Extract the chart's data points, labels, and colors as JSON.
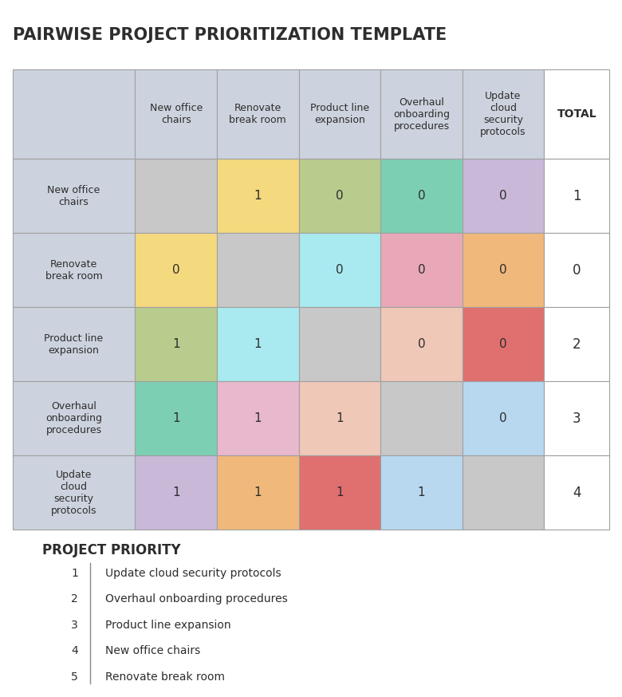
{
  "title": "PAIRWISE PROJECT PRIORITIZATION TEMPLATE",
  "projects": [
    "New office\nchairs",
    "Renovate\nbreak room",
    "Product line\nexpansion",
    "Overhaul\nonboarding\nprocedures",
    "Update\ncloud\nsecurity\nprotocols"
  ],
  "totals": [
    1,
    0,
    2,
    3,
    4
  ],
  "values": [
    [
      null,
      1,
      0,
      0,
      0
    ],
    [
      0,
      null,
      0,
      0,
      0
    ],
    [
      1,
      1,
      null,
      0,
      0
    ],
    [
      1,
      1,
      1,
      null,
      0
    ],
    [
      1,
      1,
      1,
      1,
      null
    ]
  ],
  "header_bg": "#cdd3de",
  "row_header_bg": "#cdd3de",
  "diagonal_bg": "#c8c8c8",
  "total_col_bg": "#ffffff",
  "cell_colors": [
    [
      null,
      "#f5d97e",
      "#b8cc8e",
      "#7dcfb3",
      "#c9b8d8"
    ],
    [
      "#f5d97e",
      null,
      "#a8eaf0",
      "#e8a8b8",
      "#f0b87a"
    ],
    [
      "#b8cc8e",
      "#a8eaf0",
      null,
      "#f0c8b8",
      "#e07070"
    ],
    [
      "#7dcfb3",
      "#e8b8cc",
      "#f0c8b8",
      null,
      "#b8d8f0"
    ],
    [
      "#c9b8d8",
      "#f0b87a",
      "#e07070",
      "#b8d8f0",
      null
    ]
  ],
  "priority_title": "PROJECT PRIORITY",
  "priority_list": [
    "Update cloud security protocols",
    "Overhaul onboarding procedures",
    "Product line expansion",
    "New office chairs",
    "Renovate break room"
  ],
  "bg_color": "#ffffff",
  "title_color": "#2d2d2d",
  "text_color": "#2d2d2d",
  "grid_color": "#a0a0a0",
  "title_fontsize": 15,
  "header_fontsize": 9,
  "cell_fontsize": 11,
  "priority_title_fontsize": 12,
  "priority_fontsize": 10
}
